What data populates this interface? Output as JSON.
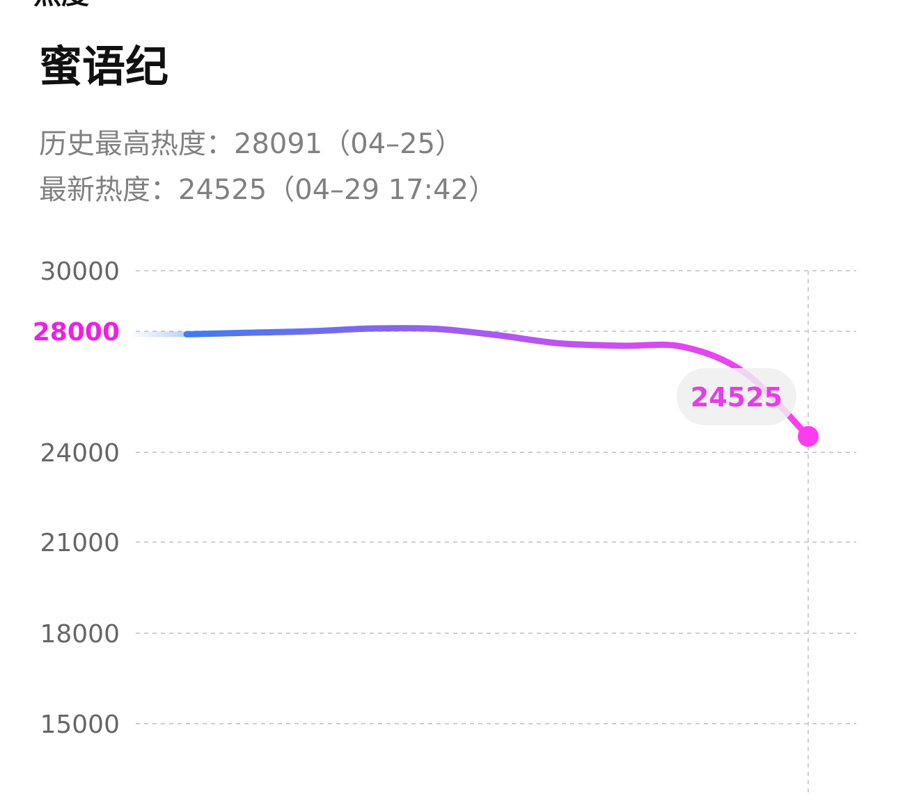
{
  "header": {
    "cut_heading": "热度",
    "title": "蜜语纪",
    "peak_line": "历史最高热度：28091（04–25）",
    "latest_line": "最新热度：24525（04–29 17:42）"
  },
  "colors": {
    "line_start": "#3f7cf0",
    "line_mid": "#a35cf0",
    "line_end": "#ff3cf0",
    "highlight_tick": "#f01ee6",
    "callout_text": "#e43ee9",
    "callout_bg": "#eeeeee",
    "grid": "#cfcfcf",
    "axis_text": "#666666"
  },
  "chart_data": {
    "type": "line",
    "title": "",
    "xlabel": "",
    "ylabel": "",
    "ylim": [
      15000,
      30000
    ],
    "grid": true,
    "y_ticks": [
      {
        "value": 30000,
        "label": "30000",
        "highlight": false
      },
      {
        "value": 28000,
        "label": "28000",
        "highlight": true
      },
      {
        "value": 24000,
        "label": "24000",
        "highlight": false
      },
      {
        "value": 21000,
        "label": "21000",
        "highlight": false
      },
      {
        "value": 18000,
        "label": "18000",
        "highlight": false
      },
      {
        "value": 15000,
        "label": "15000",
        "highlight": false
      }
    ],
    "series": [
      {
        "x": [
          0,
          1,
          2,
          3,
          4,
          5,
          6,
          7,
          8,
          9,
          10
        ],
        "y": [
          27900,
          27950,
          28000,
          28091,
          28080,
          27870,
          27600,
          27520,
          27480,
          26600,
          24525
        ]
      }
    ],
    "callout": {
      "value": 24525,
      "label": "24525"
    }
  }
}
